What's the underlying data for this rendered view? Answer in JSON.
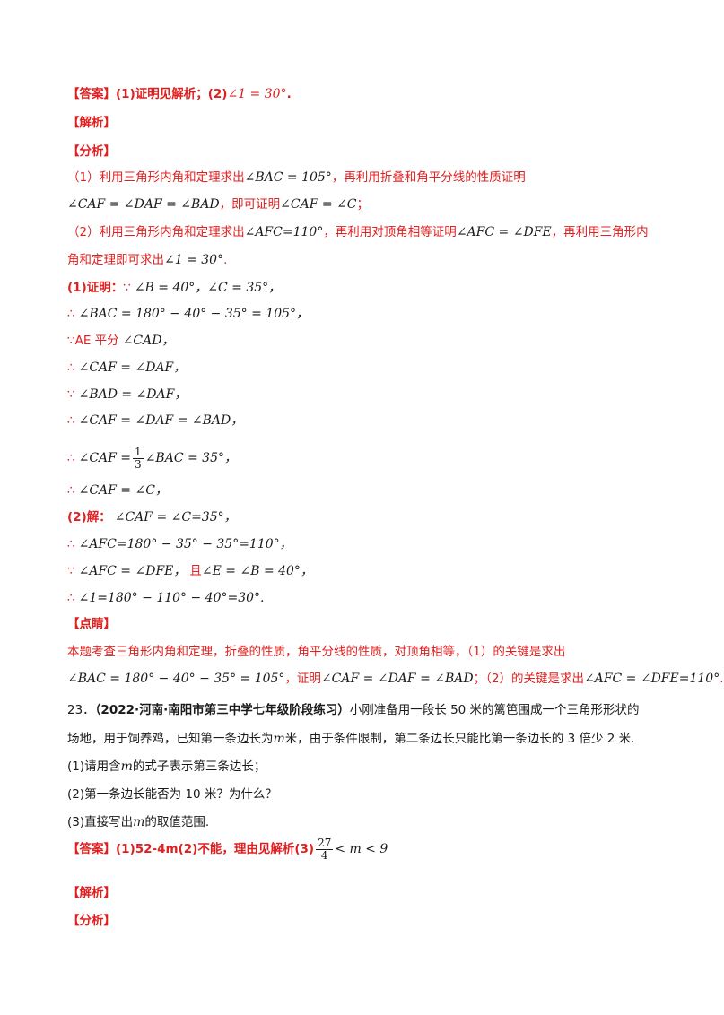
{
  "q22": {
    "answer_tag": "【答案】",
    "answer_text": "(1)证明见解析；(2)",
    "answer_math": "∠1 = 30°",
    "answer_end": ".",
    "jiexi_tag": "【解析】",
    "fenxi_tag": "【分析】",
    "analysis_1a": "（1）利用三角形内角和定理求出",
    "analysis_1a_math": "∠BAC = 105°",
    "analysis_1b": "，再利用折叠和角平分线的性质证明",
    "analysis_1c_math": "∠CAF = ∠DAF = ∠BAD",
    "analysis_1d": "，即可证明",
    "analysis_1e_math": "∠CAF = ∠C",
    "analysis_1f": "；",
    "analysis_2a": "（2）利用三角形内角和定理求出",
    "analysis_2a_math": "∠AFC=110°",
    "analysis_2b": "，再利用对顶角相等证明",
    "analysis_2b_math": "∠AFC = ∠DFE",
    "analysis_2c": "，再利用三角形内",
    "analysis_2d": "角和定理即可求出",
    "analysis_2d_math": "∠1 = 30°",
    "analysis_2e": ".",
    "proof1_label": "(1)证明：",
    "proof1_since": "∵",
    "proof1_math": "∠B = 40°，∠C = 35°，",
    "step2_sym": "∴",
    "step2_math": "∠BAC = 180° − 40° − 35° = 105°，",
    "step3_sym": "∵",
    "step3_text": "AE 平分",
    "step3_math": "∠CAD，",
    "step4_sym": "∴",
    "step4_math": "∠CAF = ∠DAF，",
    "step5_sym": "∵",
    "step5_math": "∠BAD = ∠DAF，",
    "step6_sym": "∴",
    "step6_math": "∠CAF = ∠DAF = ∠BAD，",
    "step7_sym": "∴",
    "step7_pre": "∠CAF =",
    "step7_num": "1",
    "step7_den": "3",
    "step7_post": "∠BAC = 35°，",
    "step8_sym": "∴",
    "step8_math": "∠CAF = ∠C，",
    "proof2_label": "(2)解：",
    "proof2_math": "∠CAF = ∠C=35°，",
    "step10_sym": "∴",
    "step10_math": "∠AFC=180° − 35° − 35°=110°，",
    "step11_sym": "∵",
    "step11_math": "∠AFC = ∠DFE，",
    "step11_text": "且",
    "step11_math2": "∠E = ∠B = 40°，",
    "step12_sym": "∴",
    "step12_math": "∠1=180° − 110° − 40°=30°.",
    "dianjing_tag": "【点睛】",
    "dianjing_1": "本题考查三角形内角和定理，折叠的性质，角平分线的性质，对顶角相等，（1）的关键是求出",
    "dianjing_2_math": "∠BAC = 180° − 40° − 35° = 105°",
    "dianjing_2_text": "，证明",
    "dianjing_2_math2": "∠CAF = ∠DAF = ∠BAD",
    "dianjing_2_text2": "；（2）的关键是求出",
    "dianjing_2_math3": "∠AFC = ∠DFE=110°",
    "dianjing_2_end": "."
  },
  "q23": {
    "number": "23．",
    "source": "（2022·河南·南阳市第三中学七年级阶段练习）",
    "stem_1": "小刚准备用一段长 50 米的篱笆围成一个三角形形状的",
    "stem_2a": "场地，用于饲养鸡，已知第一条边长为",
    "stem_2_m": "m",
    "stem_2b": "米，由于条件限制，第二条边长只能比第一条边长的 3 倍少 2 米.",
    "sub1a": "(1)请用含",
    "sub1_m": "m",
    "sub1b": "的式子表示第三条边长；",
    "sub2": "(2)第一条边长能否为 10 米？为什么？",
    "sub3a": "(3)直接写出",
    "sub3_m": "m",
    "sub3b": "的取值范围.",
    "answer_tag": "【答案】",
    "answer_text": "(1)52-4m(2)不能，理由见解析(3)",
    "answer_num": "27",
    "answer_den": "4",
    "answer_post": "< m < 9",
    "jiexi_tag": "【解析】",
    "fenxi_tag": "【分析】"
  },
  "colors": {
    "highlight": "#e02020",
    "text": "#1a1a1a"
  }
}
